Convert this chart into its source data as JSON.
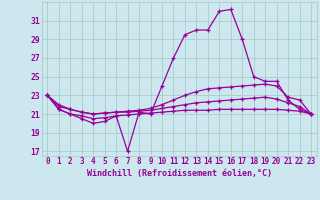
{
  "xlabel": "Windchill (Refroidissement éolien,°C)",
  "bg_color": "#cce8ee",
  "grid_color": "#aacccc",
  "line_color": "#990099",
  "x": [
    0,
    1,
    2,
    3,
    4,
    5,
    6,
    7,
    8,
    9,
    10,
    11,
    12,
    13,
    14,
    15,
    16,
    17,
    18,
    19,
    20,
    21,
    22,
    23
  ],
  "series": [
    [
      23.0,
      21.5,
      21.0,
      20.5,
      20.0,
      20.2,
      20.8,
      17.0,
      21.2,
      21.0,
      24.0,
      27.0,
      29.5,
      30.0,
      30.0,
      32.0,
      32.2,
      29.0,
      25.0,
      24.5,
      24.5,
      22.5,
      21.5,
      21.0
    ],
    [
      23.0,
      22.0,
      21.5,
      21.2,
      21.0,
      21.1,
      21.2,
      21.3,
      21.4,
      21.6,
      22.0,
      22.5,
      23.0,
      23.4,
      23.7,
      23.8,
      23.9,
      24.0,
      24.1,
      24.2,
      24.0,
      22.8,
      22.5,
      21.0
    ],
    [
      23.0,
      21.8,
      21.5,
      21.2,
      21.0,
      21.1,
      21.2,
      21.2,
      21.3,
      21.4,
      21.6,
      21.8,
      22.0,
      22.2,
      22.3,
      22.4,
      22.5,
      22.6,
      22.7,
      22.8,
      22.6,
      22.2,
      21.8,
      21.0
    ],
    [
      23.0,
      21.5,
      21.0,
      20.8,
      20.5,
      20.6,
      20.8,
      20.9,
      21.0,
      21.1,
      21.2,
      21.3,
      21.4,
      21.4,
      21.4,
      21.5,
      21.5,
      21.5,
      21.5,
      21.5,
      21.5,
      21.4,
      21.3,
      21.0
    ]
  ],
  "ylim": [
    16.5,
    33.0
  ],
  "yticks": [
    17,
    19,
    21,
    23,
    25,
    27,
    29,
    31
  ],
  "xticks": [
    0,
    1,
    2,
    3,
    4,
    5,
    6,
    7,
    8,
    9,
    10,
    11,
    12,
    13,
    14,
    15,
    16,
    17,
    18,
    19,
    20,
    21,
    22,
    23
  ],
  "marker": "+",
  "markersize": 3,
  "linewidth": 0.9,
  "tick_fontsize": 5.5,
  "xlabel_fontsize": 6.0
}
